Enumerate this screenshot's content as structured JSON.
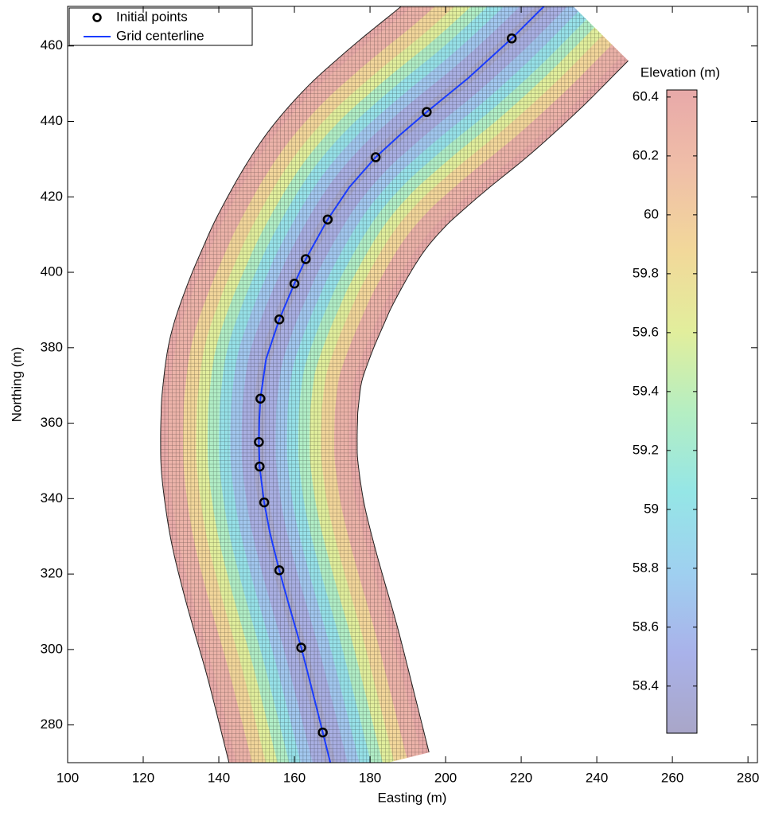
{
  "chart_data": {
    "type": "scatter",
    "xlabel": "Easting (m)",
    "ylabel": "Northing (m)",
    "xlim": [
      100,
      282.5
    ],
    "ylim": [
      270,
      470.5
    ],
    "xticks": [
      100,
      120,
      140,
      160,
      180,
      200,
      220,
      240,
      260,
      280
    ],
    "yticks": [
      280,
      300,
      320,
      340,
      360,
      380,
      400,
      420,
      440,
      460
    ],
    "legend": "upper left",
    "series": [
      {
        "name": "Initial points",
        "type": "scatter",
        "color": "#000000",
        "x": [
          167.5,
          161.8,
          156,
          152,
          150.8,
          150.6,
          151,
          156,
          160,
          163,
          168.8,
          181.5,
          195,
          217.5
        ],
        "y": [
          278,
          300.5,
          321,
          339,
          348.5,
          355,
          366.5,
          387.5,
          397,
          403.5,
          414,
          430.5,
          442.5,
          462
        ]
      },
      {
        "name": "Grid centerline",
        "type": "line",
        "color": "#1a3cff",
        "x": [
          169.5,
          167.5,
          164.5,
          161.8,
          158.5,
          156,
          153.5,
          152,
          150.8,
          150.6,
          150.7,
          151,
          152.5,
          156,
          160,
          163,
          168.8,
          174.5,
          181.5,
          188,
          195,
          206,
          217.5,
          226
        ],
        "y": [
          270,
          278,
          290,
          300.5,
          312,
          321,
          331,
          339,
          348.5,
          355,
          361,
          366.5,
          377,
          387.5,
          397,
          403.5,
          414,
          422.5,
          430.5,
          436.5,
          442.5,
          451.5,
          462,
          470.5
        ]
      }
    ],
    "mesh": {
      "offset": [
        -26,
        -22,
        -18,
        -15,
        -12,
        -9,
        -6,
        -3,
        0,
        3,
        6,
        9,
        12,
        15,
        18,
        22,
        26
      ],
      "elevation": [
        60.4,
        60.3,
        59.9,
        59.6,
        59.3,
        59.0,
        58.7,
        58.45,
        58.3,
        58.45,
        58.7,
        59.0,
        59.3,
        59.6,
        59.9,
        60.3,
        60.4
      ]
    },
    "colorbar": {
      "title": "Elevation (m)",
      "clim": [
        58.24,
        60.424
      ],
      "ticks": [
        58.4,
        58.6,
        58.8,
        59,
        59.2,
        59.4,
        59.6,
        59.8,
        60,
        60.2,
        60.4
      ],
      "colormap": [
        "#a9a6c8",
        "#a9b2ea",
        "#9fd0f0",
        "#95e6e6",
        "#b5eec2",
        "#e2ee9c",
        "#f2d89a",
        "#f0bfa8",
        "#e8a9a9"
      ]
    }
  }
}
